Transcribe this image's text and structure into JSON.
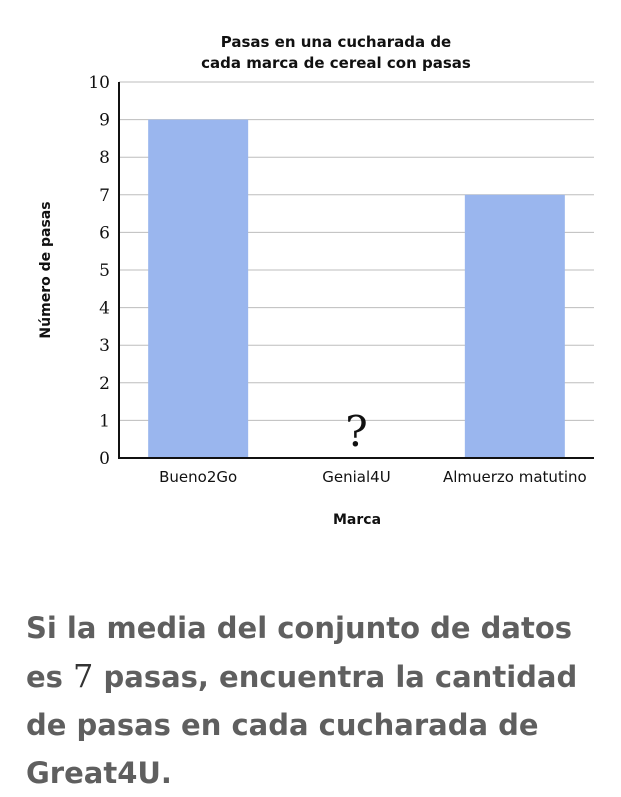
{
  "chart_data": {
    "type": "bar",
    "title_lines": [
      "Pasas en una cucharada de",
      "cada marca de cereal con pasas"
    ],
    "xlabel": "Marca",
    "ylabel": "Número de pasas",
    "categories": [
      "Bueno2Go",
      "Genial4U",
      "Almuerzo matutino"
    ],
    "values": [
      9,
      null,
      7
    ],
    "unknown_marker": "?",
    "ylim": [
      0,
      10
    ],
    "yticks": [
      0,
      1,
      2,
      3,
      4,
      5,
      6,
      7,
      8,
      9,
      10
    ],
    "grid": true,
    "bar_color": "#9ab6ee",
    "grid_color": "#bdbdbd"
  },
  "question": {
    "before": "Si la media del conjunto de datos es ",
    "number": "7",
    "after": " pasas, encuentra la cantidad de pasas en cada cucharada de Great4U."
  }
}
